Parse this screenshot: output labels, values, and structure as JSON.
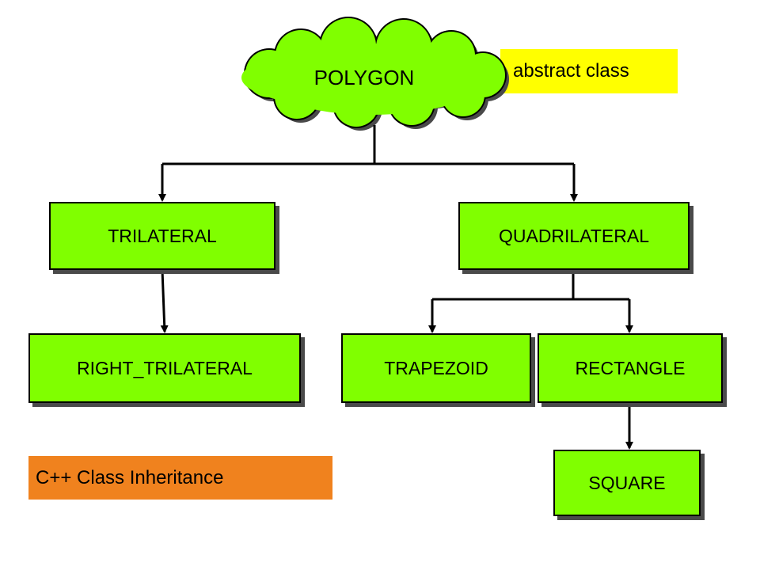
{
  "colors": {
    "node_fill": "#80ff00",
    "abstract_tag": "#ffff00",
    "inheritance_tag": "#f0821e",
    "line": "#000000"
  },
  "root": {
    "label": "POLYGON",
    "shape": "cloud"
  },
  "abstract_note": "abstract class",
  "caption": "C++ Class Inheritance",
  "nodes": {
    "trilateral": "TRILATERAL",
    "quadrilateral": "QUADRILATERAL",
    "right_trilateral": "RIGHT_TRILATERAL",
    "trapezoid": "TRAPEZOID",
    "rectangle": "RECTANGLE",
    "square": "SQUARE"
  },
  "edges": [
    [
      "POLYGON",
      "TRILATERAL"
    ],
    [
      "POLYGON",
      "QUADRILATERAL"
    ],
    [
      "TRILATERAL",
      "RIGHT_TRILATERAL"
    ],
    [
      "QUADRILATERAL",
      "TRAPEZOID"
    ],
    [
      "QUADRILATERAL",
      "RECTANGLE"
    ],
    [
      "RECTANGLE",
      "SQUARE"
    ]
  ]
}
